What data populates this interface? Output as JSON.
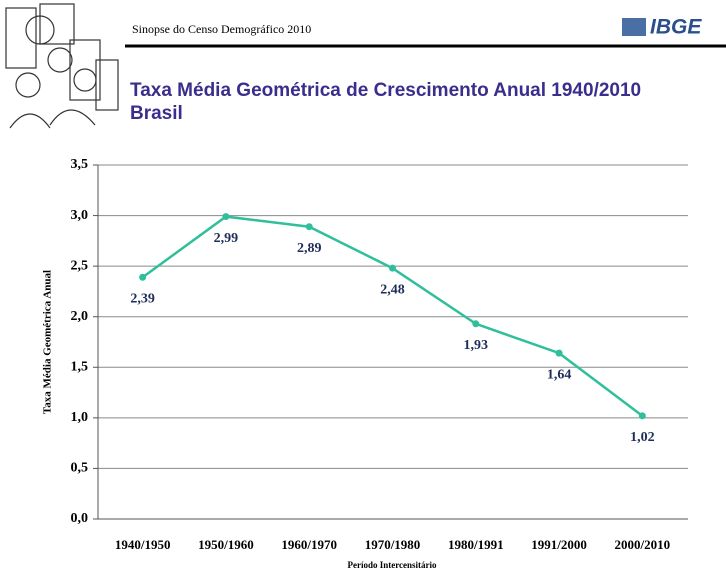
{
  "header": {
    "publication": "Sinopse do Censo Demográfico 2010",
    "logo": "IBGE"
  },
  "chart_data": {
    "type": "line",
    "title": "Taxa Média Geométrica de Crescimento Anual 1940/2010",
    "subtitle": "Brasil",
    "x_label": "Período Intercensitário",
    "y_label": "Taxa Média Geométrica Anual",
    "categories": [
      "1940/1950",
      "1950/1960",
      "1960/1970",
      "1970/1980",
      "1980/1991",
      "1991/2000",
      "2000/2010"
    ],
    "values": [
      2.39,
      2.99,
      2.89,
      2.48,
      1.93,
      1.64,
      1.02
    ],
    "value_labels": [
      "2,39",
      "2,99",
      "2,89",
      "2,48",
      "1,93",
      "1,64",
      "1,02"
    ],
    "color": "#2fbf9b",
    "ylim": [
      0,
      3.5
    ],
    "yticks": [
      {
        "value": 0,
        "label": "0,0"
      },
      {
        "value": 0.5,
        "label": "0,5"
      },
      {
        "value": 1,
        "label": "1,0"
      },
      {
        "value": 1.5,
        "label": "1,5"
      },
      {
        "value": 2,
        "label": "2,0"
      },
      {
        "value": 2.5,
        "label": "2,5"
      },
      {
        "value": 3,
        "label": "3,0"
      },
      {
        "value": 3.5,
        "label": "3,5"
      }
    ],
    "grid": true
  }
}
